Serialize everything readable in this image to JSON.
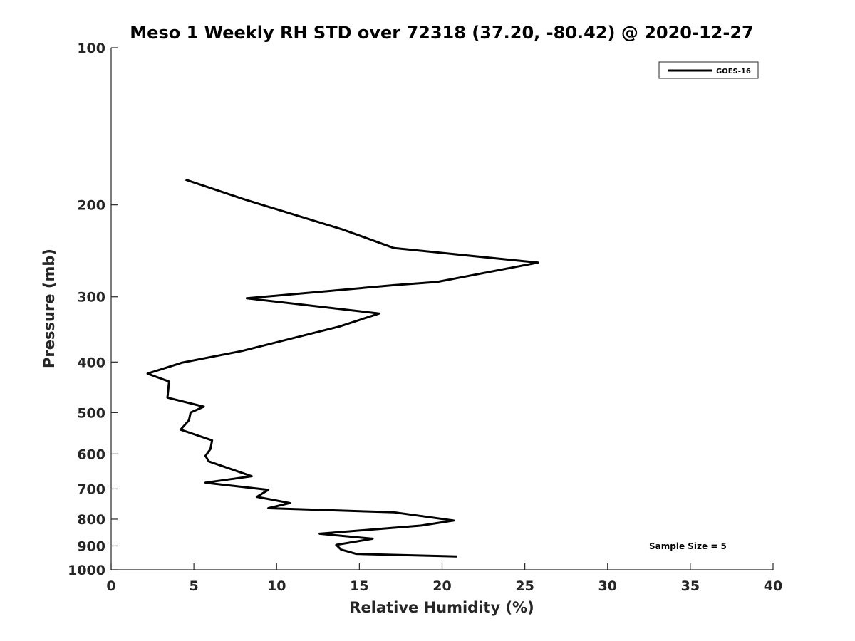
{
  "chart_data": {
    "type": "line",
    "title": "Meso 1 Weekly RH STD over 72318 (37.20, -80.42) @ 2020-12-27",
    "xlabel": "Relative Humidity (%)",
    "ylabel": "Pressure (mb)",
    "xlim": [
      0,
      40
    ],
    "ylim": [
      100,
      1000
    ],
    "y_scale": "log",
    "y_reversed": true,
    "x_ticks": [
      "0",
      "5",
      "10",
      "15",
      "20",
      "25",
      "30",
      "35",
      "40"
    ],
    "y_ticks": [
      "100",
      "200",
      "300",
      "400",
      "500",
      "600",
      "700",
      "800",
      "900",
      "1000"
    ],
    "grid": false,
    "legend_position": "top-right",
    "legend": [
      "GOES-16"
    ],
    "annotation": "Sample Size = 5",
    "series": [
      {
        "name": "GOES-16",
        "color": "#000000",
        "points": [
          {
            "x": 4.5,
            "y": 179
          },
          {
            "x": 8.0,
            "y": 195
          },
          {
            "x": 14.0,
            "y": 223
          },
          {
            "x": 17.1,
            "y": 242
          },
          {
            "x": 25.8,
            "y": 258
          },
          {
            "x": 19.7,
            "y": 281
          },
          {
            "x": 17.1,
            "y": 285
          },
          {
            "x": 8.2,
            "y": 302
          },
          {
            "x": 16.2,
            "y": 323
          },
          {
            "x": 13.8,
            "y": 342
          },
          {
            "x": 7.9,
            "y": 381
          },
          {
            "x": 4.3,
            "y": 401
          },
          {
            "x": 2.2,
            "y": 421
          },
          {
            "x": 3.5,
            "y": 436
          },
          {
            "x": 3.4,
            "y": 468
          },
          {
            "x": 5.6,
            "y": 487
          },
          {
            "x": 4.8,
            "y": 500
          },
          {
            "x": 4.7,
            "y": 517
          },
          {
            "x": 4.2,
            "y": 539
          },
          {
            "x": 6.1,
            "y": 565
          },
          {
            "x": 6.0,
            "y": 587
          },
          {
            "x": 5.7,
            "y": 605
          },
          {
            "x": 5.9,
            "y": 620
          },
          {
            "x": 7.1,
            "y": 639
          },
          {
            "x": 8.5,
            "y": 662
          },
          {
            "x": 5.7,
            "y": 681
          },
          {
            "x": 9.5,
            "y": 703
          },
          {
            "x": 8.8,
            "y": 725
          },
          {
            "x": 10.8,
            "y": 745
          },
          {
            "x": 9.5,
            "y": 762
          },
          {
            "x": 17.1,
            "y": 776
          },
          {
            "x": 20.7,
            "y": 805
          },
          {
            "x": 18.7,
            "y": 823
          },
          {
            "x": 12.6,
            "y": 853
          },
          {
            "x": 15.8,
            "y": 872
          },
          {
            "x": 13.6,
            "y": 896
          },
          {
            "x": 13.9,
            "y": 915
          },
          {
            "x": 14.8,
            "y": 932
          },
          {
            "x": 20.9,
            "y": 943
          }
        ]
      }
    ]
  }
}
